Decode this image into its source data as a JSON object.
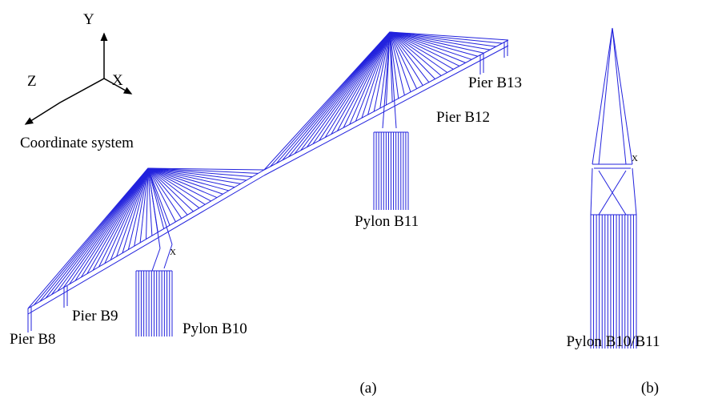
{
  "axes": {
    "y": "Y",
    "z": "Z",
    "x": "X",
    "caption": "Coordinate system"
  },
  "labels": {
    "pier_b8": "Pier B8",
    "pier_b9": "Pier B9",
    "pylon_b10": "Pylon B10",
    "pylon_b11": "Pylon B11",
    "pier_b12": "Pier B12",
    "pier_b13": "Pier B13",
    "pylon_b10_b11": "Pylon B10/B11",
    "model_x_a": "X",
    "model_x_b": "X"
  },
  "panels": {
    "a": "(a)",
    "b": "(b)"
  }
}
